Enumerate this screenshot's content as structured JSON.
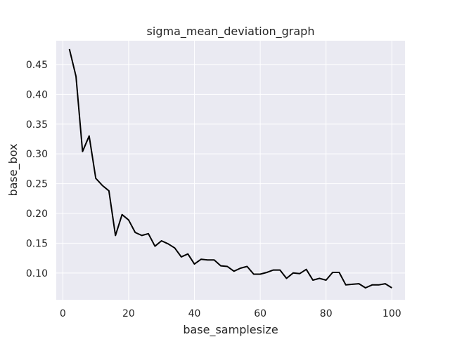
{
  "chart_data": {
    "type": "line",
    "title": "sigma_mean_deviation_graph",
    "xlabel": "base_samplesize",
    "ylabel": "base_box",
    "xlim": [
      -2,
      104
    ],
    "ylim": [
      0.055,
      0.49
    ],
    "xticks": [
      0,
      20,
      40,
      60,
      80,
      100
    ],
    "xtick_labels": [
      "0",
      "20",
      "40",
      "60",
      "80",
      "100"
    ],
    "yticks": [
      0.1,
      0.15,
      0.2,
      0.25,
      0.3,
      0.35,
      0.4,
      0.45
    ],
    "ytick_labels": [
      "0.10",
      "0.15",
      "0.20",
      "0.25",
      "0.30",
      "0.35",
      "0.40",
      "0.45"
    ],
    "grid": true,
    "colors": {
      "background": "#eaeaf2",
      "grid": "#ffffff",
      "line": "#000000"
    },
    "series": [
      {
        "x": [
          2,
          4,
          6,
          8,
          10,
          12,
          14,
          16,
          18,
          20,
          22,
          24,
          26,
          28,
          30,
          32,
          34,
          36,
          38,
          40,
          42,
          44,
          46,
          48,
          50,
          52,
          54,
          56,
          58,
          60,
          62,
          64,
          66,
          68,
          70,
          72,
          74,
          76,
          78,
          80,
          82,
          84,
          86,
          88,
          90,
          92,
          94,
          96,
          98,
          100
        ],
        "values": [
          0.476,
          0.43,
          0.304,
          0.33,
          0.259,
          0.247,
          0.238,
          0.163,
          0.198,
          0.189,
          0.168,
          0.163,
          0.166,
          0.145,
          0.154,
          0.149,
          0.142,
          0.127,
          0.132,
          0.115,
          0.123,
          0.122,
          0.122,
          0.112,
          0.111,
          0.103,
          0.108,
          0.111,
          0.098,
          0.098,
          0.101,
          0.105,
          0.105,
          0.091,
          0.1,
          0.099,
          0.106,
          0.088,
          0.091,
          0.088,
          0.101,
          0.101,
          0.08,
          0.081,
          0.082,
          0.075,
          0.08,
          0.08,
          0.082,
          0.075
        ]
      }
    ]
  }
}
